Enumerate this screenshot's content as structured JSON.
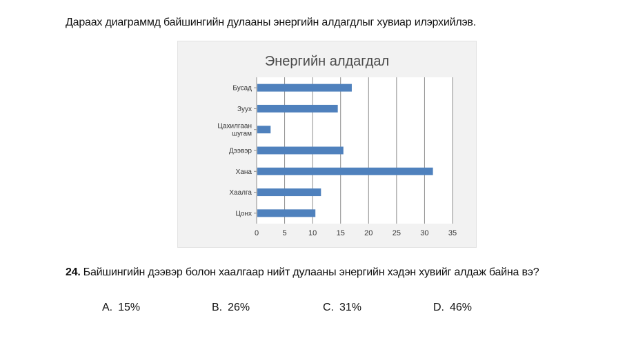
{
  "intro_text": "Дараах диаграммд байшингийн дулааны энергийн алдагдлыг хувиар илэрхийлэв.",
  "question": {
    "number": "24.",
    "text": "Байшингийн дээвэр болон хаалгаар нийт дулааны энергийн хэдэн хувийг алдаж байна вэ?"
  },
  "answers": [
    {
      "letter": "A.",
      "value": "15%"
    },
    {
      "letter": "B.",
      "value": "26%"
    },
    {
      "letter": "C.",
      "value": "31%"
    },
    {
      "letter": "D.",
      "value": "46%"
    }
  ],
  "colors": {
    "bar": "#4f81bd",
    "gridline": "#8c8c8c",
    "chart_background": "#f2f2f2",
    "plot_background": "#ffffff"
  },
  "chart_data": {
    "type": "bar",
    "orientation": "horizontal",
    "title": "Энергийн алдагдал",
    "xlabel": "",
    "ylabel": "",
    "categories": [
      [
        "Бусад"
      ],
      [
        "Зуух"
      ],
      [
        "Цахилгаан",
        "шугам"
      ],
      [
        "Дээвэр"
      ],
      [
        "Хана"
      ],
      [
        "Хаалга"
      ],
      [
        "Цонх"
      ]
    ],
    "values": [
      17,
      14.5,
      2.5,
      15.5,
      31.5,
      11.5,
      10.5
    ],
    "xlim": [
      0,
      35
    ],
    "xticks": [
      0,
      5,
      10,
      15,
      20,
      25,
      30,
      35
    ],
    "grid": "vertical",
    "legend": "none"
  }
}
